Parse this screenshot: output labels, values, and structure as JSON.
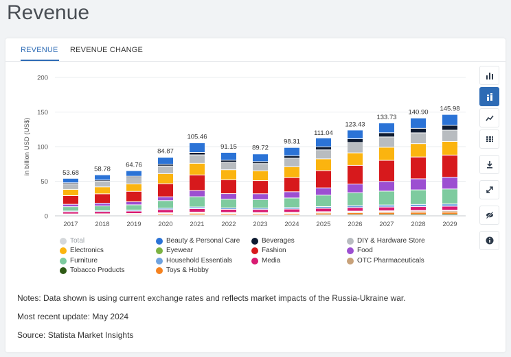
{
  "page": {
    "title": "Revenue"
  },
  "tabs": [
    {
      "label": "REVENUE",
      "active": true
    },
    {
      "label": "REVENUE CHANGE",
      "active": false
    }
  ],
  "toolbar": {
    "buttons": [
      {
        "icon": "bar-chart-icon"
      },
      {
        "icon": "stacked-bar-icon",
        "active": true
      },
      {
        "icon": "line-chart-icon"
      },
      {
        "icon": "table-icon"
      },
      {
        "icon": "download-icon"
      },
      {
        "icon": "expand-icon"
      },
      {
        "icon": "hide-icon"
      },
      {
        "icon": "info-icon"
      }
    ]
  },
  "chart_data": {
    "type": "bar",
    "stacked": true,
    "ylabel": "in billion USD (US$)",
    "ylim": [
      0,
      200
    ],
    "yticks": [
      0,
      50,
      100,
      150,
      200
    ],
    "categories": [
      "2017",
      "2018",
      "2019",
      "2020",
      "2021",
      "2022",
      "2023",
      "2024",
      "2025",
      "2026",
      "2027",
      "2028",
      "2029"
    ],
    "totals": [
      53.68,
      58.78,
      64.76,
      84.87,
      105.46,
      91.15,
      89.72,
      98.31,
      111.04,
      123.43,
      133.73,
      140.9,
      145.98
    ],
    "total_labels": [
      "53.68",
      "58.78",
      "64.76",
      "84.87",
      "105.46",
      "91.15",
      "89.72",
      "98.31",
      "111.04",
      "123.43",
      "133.73",
      "140.90",
      "145.98"
    ],
    "series": [
      {
        "name": "Tobacco Products",
        "color": "#2e5a14",
        "values": [
          0.5,
          0.5,
          0.6,
          0.8,
          1.0,
          0.9,
          0.9,
          1.0,
          1.2,
          1.4,
          1.5,
          1.6,
          1.7
        ]
      },
      {
        "name": "Toys & Hobby",
        "color": "#f5821f",
        "values": [
          1.0,
          1.1,
          1.2,
          1.8,
          2.2,
          1.9,
          1.8,
          2.0,
          2.3,
          2.6,
          2.8,
          3.0,
          3.1
        ]
      },
      {
        "name": "OTC Pharmaceuticals",
        "color": "#c8a27a",
        "values": [
          0.5,
          0.6,
          0.7,
          0.9,
          1.1,
          1.0,
          1.0,
          1.1,
          1.3,
          1.5,
          1.6,
          1.7,
          1.8
        ]
      },
      {
        "name": "Eyewear",
        "color": "#7cb342",
        "values": [
          0.3,
          0.3,
          0.4,
          0.5,
          0.6,
          0.6,
          0.6,
          0.6,
          0.7,
          0.8,
          0.9,
          0.9,
          1.0
        ]
      },
      {
        "name": "Media",
        "color": "#d81b72",
        "values": [
          3.0,
          3.2,
          3.5,
          4.5,
          5.0,
          4.5,
          4.4,
          4.6,
          4.9,
          5.2,
          5.4,
          5.6,
          5.8
        ]
      },
      {
        "name": "Household Essentials",
        "color": "#6fa3e0",
        "values": [
          1.2,
          1.3,
          1.5,
          2.0,
          2.4,
          2.1,
          2.0,
          2.2,
          2.5,
          2.8,
          3.0,
          3.2,
          3.3
        ]
      },
      {
        "name": "Furniture",
        "color": "#7ecb9f",
        "values": [
          6.2,
          6.8,
          7.5,
          11.0,
          14.8,
          12.6,
          12.2,
          13.8,
          16.5,
          18.6,
          20.0,
          21.0,
          21.6
        ]
      },
      {
        "name": "Food",
        "color": "#9c4fd1",
        "values": [
          3.5,
          4.0,
          4.5,
          5.5,
          9.0,
          8.0,
          8.5,
          9.0,
          10.5,
          12.5,
          14.0,
          16.0,
          17.0
        ]
      },
      {
        "name": "Fashion",
        "color": "#d7191c",
        "values": [
          12.5,
          13.5,
          15.0,
          19.0,
          22.5,
          20.0,
          19.0,
          20.5,
          25.0,
          27.0,
          30.5,
          31.5,
          32.0
        ]
      },
      {
        "name": "Electronics",
        "color": "#fbb40f",
        "values": [
          9.0,
          10.0,
          10.8,
          14.5,
          16.8,
          14.5,
          14.2,
          15.6,
          16.9,
          18.1,
          18.9,
          19.3,
          19.7
        ]
      },
      {
        "name": "DIY & Hardware Store",
        "color": "#b8bcc0",
        "values": [
          8.0,
          8.3,
          9.2,
          11.0,
          12.2,
          10.8,
          10.4,
          12.4,
          13.0,
          14.9,
          14.9,
          15.6,
          16.3
        ]
      },
      {
        "name": "Beverages",
        "color": "#0e1b31",
        "values": [
          1.5,
          1.6,
          1.8,
          2.5,
          3.5,
          3.0,
          2.8,
          3.5,
          4.5,
          5.5,
          6.0,
          6.5,
          7.0
        ]
      },
      {
        "name": "Beauty & Personal Care",
        "color": "#2b73d6",
        "values": [
          6.48,
          7.58,
          8.06,
          10.17,
          13.86,
          11.25,
          11.12,
          12.01,
          12.74,
          12.53,
          14.23,
          15.0,
          15.68
        ]
      }
    ],
    "legend": [
      {
        "name": "Total",
        "color": "#d5d8db",
        "muted": true
      },
      {
        "name": "Beauty & Personal Care",
        "color": "#2b73d6"
      },
      {
        "name": "Beverages",
        "color": "#0e1b31"
      },
      {
        "name": "DIY & Hardware Store",
        "color": "#b8bcc0"
      },
      {
        "name": "Electronics",
        "color": "#fbb40f"
      },
      {
        "name": "Eyewear",
        "color": "#7cb342"
      },
      {
        "name": "Fashion",
        "color": "#d7191c"
      },
      {
        "name": "Food",
        "color": "#9c4fd1"
      },
      {
        "name": "Furniture",
        "color": "#7ecb9f"
      },
      {
        "name": "Household Essentials",
        "color": "#6fa3e0"
      },
      {
        "name": "Media",
        "color": "#d81b72"
      },
      {
        "name": "OTC Pharmaceuticals",
        "color": "#c8a27a"
      },
      {
        "name": "Tobacco Products",
        "color": "#2e5a14"
      },
      {
        "name": "Toys & Hobby",
        "color": "#f5821f"
      }
    ]
  },
  "notes": {
    "line1": "Notes: Data shown is using current exchange rates and reflects market impacts of the Russia-Ukraine war.",
    "line2": "Most recent update: May 2024",
    "line3": "Source: Statista Market Insights"
  }
}
